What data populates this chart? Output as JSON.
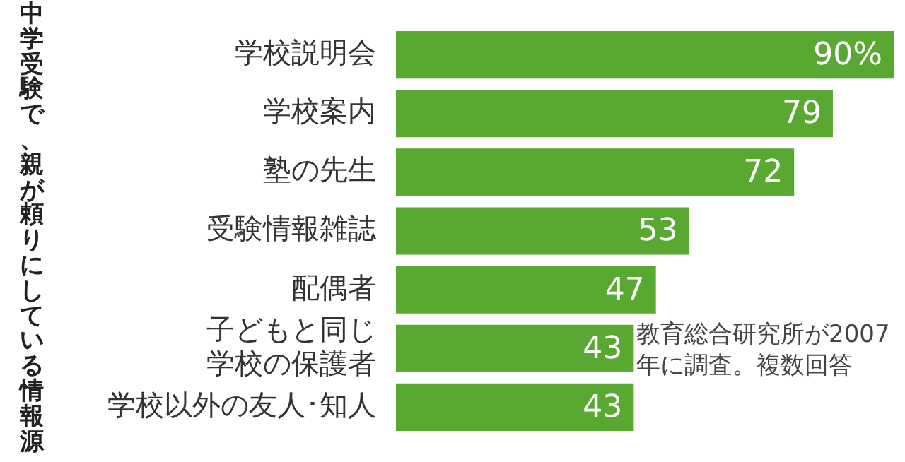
{
  "chart_data": {
    "type": "bar",
    "orientation": "horizontal",
    "title": "中学受験で、親が頼りにしている情報源",
    "categories": [
      "学校説明会",
      "学校案内",
      "塾の先生",
      "受験情報雑誌",
      "配偶者",
      "子どもと同じ学校の保護者",
      "学校以外の友人･知人"
    ],
    "values": [
      90,
      79,
      72,
      53,
      47,
      43,
      43
    ],
    "color": "#58a832",
    "value_labels": [
      "90%",
      "79",
      "72",
      "53",
      "47",
      "43",
      "43"
    ],
    "xlim": [
      0,
      90
    ],
    "tick_labels": "y",
    "grid": false,
    "legend": false,
    "annotations": [
      "教育総合研究所が2007年に調査。複数回答"
    ]
  }
}
